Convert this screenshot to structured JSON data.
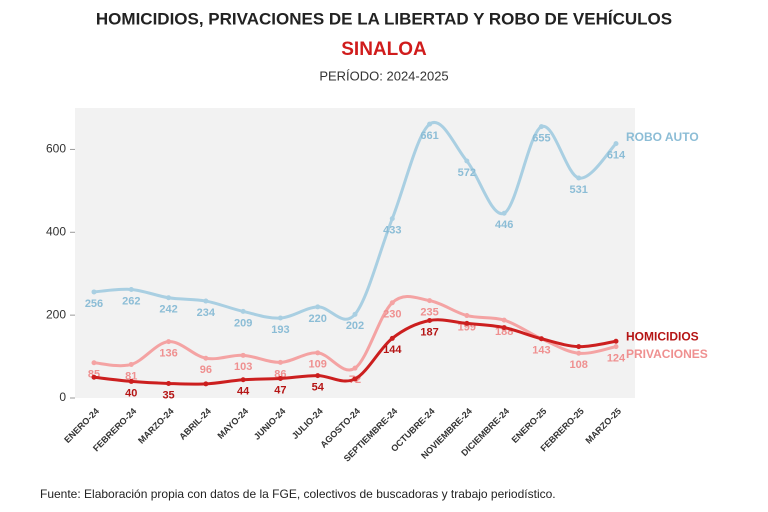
{
  "chart_data": {
    "type": "line",
    "title": "HOMICIDIOS, PRIVACIONES DE LA LIBERTAD Y ROBO DE VEHÍCULOS",
    "subtitle": "SINALOA",
    "period": "PERÍODO: 2024-2025",
    "source": "Fuente: Elaboración propia con datos de la FGE, colectivos de buscadoras y trabajo periodístico.",
    "categories": [
      "ENERO-24",
      "FEBRERO-24",
      "MARZO-24",
      "ABRIL-24",
      "MAYO-24",
      "JUNIO-24",
      "JULIO-24",
      "AGOSTO-24",
      "SEPTIEMBRE-24",
      "OCTUBRE-24",
      "NOVIEMBRE-24",
      "DICIEMBRE-24",
      "ENERO-25",
      "FEBRERO-25",
      "MARZO-25"
    ],
    "ylim": [
      0,
      700
    ],
    "yticks": [
      0,
      200,
      400,
      600
    ],
    "series": [
      {
        "name": "ROBO AUTO",
        "color": "#a9cfe2",
        "values": [
          256,
          262,
          242,
          234,
          209,
          193,
          220,
          202,
          433,
          661,
          572,
          446,
          655,
          531,
          614
        ]
      },
      {
        "name": "PRIVACIONES",
        "color": "#f4a3a3",
        "values": [
          85,
          81,
          136,
          96,
          103,
          86,
          109,
          72,
          230,
          235,
          199,
          188,
          143,
          108,
          124
        ]
      },
      {
        "name": "HOMICIDIOS",
        "color": "#cc1f1f",
        "values": [
          50,
          40,
          35,
          34,
          44,
          47,
          54,
          46,
          144,
          187,
          180,
          170,
          143,
          124,
          137
        ],
        "value_labels": [
          null,
          "40",
          "35",
          null,
          "44",
          "47",
          "54",
          null,
          "144",
          "187",
          null,
          null,
          null,
          null,
          null
        ]
      }
    ]
  }
}
